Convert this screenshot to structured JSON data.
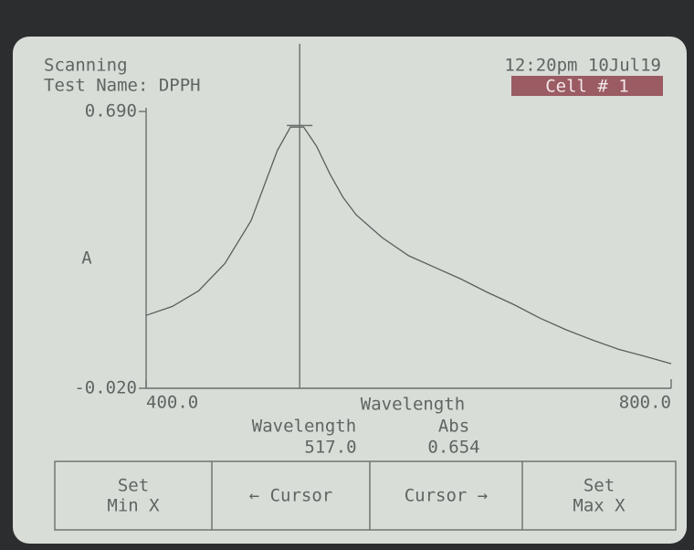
{
  "status": "Scanning",
  "test_name": "Test Name: DPPH",
  "datetime": "12:20pm 10Jul19",
  "cell": "Cell # 1",
  "chart_data": {
    "type": "line",
    "ylabel": "A",
    "xlabel": "Wavelength",
    "color": "#5a5f5c",
    "x": [
      400,
      420,
      440,
      460,
      480,
      500,
      510,
      520,
      530,
      540,
      550,
      560,
      580,
      600,
      620,
      640,
      660,
      680,
      700,
      720,
      740,
      760,
      780,
      800
    ],
    "values": [
      0.167,
      0.19,
      0.23,
      0.3,
      0.41,
      0.59,
      0.65,
      0.65,
      0.6,
      0.53,
      0.47,
      0.425,
      0.366,
      0.32,
      0.29,
      0.26,
      0.226,
      0.195,
      0.16,
      0.13,
      0.104,
      0.08,
      0.062,
      0.043
    ],
    "xlim": [
      400,
      800
    ],
    "ylim": [
      -0.02,
      0.69
    ],
    "xticks": [
      {
        "value": 400,
        "label": "400.0"
      },
      {
        "value": 800,
        "label": "800.0"
      }
    ],
    "yticks": [
      {
        "value": -0.02,
        "label": "-0.020"
      },
      {
        "value": 0.69,
        "label": "0.690"
      }
    ],
    "cursor": {
      "x_header": "Wavelength",
      "y_header": "Abs",
      "x": {
        "value": 517,
        "label": "517.0"
      },
      "y": 0.654
    }
  },
  "buttons": [
    {
      "lines": [
        "Set",
        "Min X"
      ]
    },
    {
      "lines": [
        "← Cursor"
      ]
    },
    {
      "lines": [
        "Cursor →"
      ]
    },
    {
      "lines": [
        "Set",
        "Max X"
      ]
    }
  ]
}
